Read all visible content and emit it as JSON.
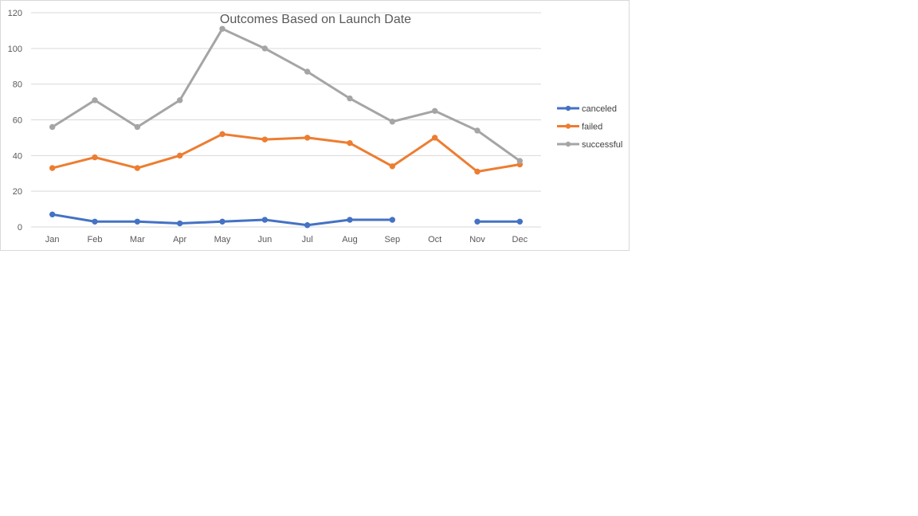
{
  "chart_data": {
    "type": "line",
    "title": "Outcomes Based on Launch Date",
    "xlabel": "",
    "ylabel": "",
    "categories": [
      "Jan",
      "Feb",
      "Mar",
      "Apr",
      "May",
      "Jun",
      "Jul",
      "Aug",
      "Sep",
      "Oct",
      "Nov",
      "Dec"
    ],
    "ylim": [
      0,
      120
    ],
    "yticks": [
      "0",
      "20",
      "40",
      "60",
      "80",
      "100",
      "120"
    ],
    "grid": true,
    "legend_position": "right",
    "series": [
      {
        "name": "canceled",
        "color": "#4472c4",
        "values": [
          7,
          3,
          3,
          2,
          3,
          4,
          1,
          4,
          4,
          null,
          3,
          3
        ]
      },
      {
        "name": "failed",
        "color": "#ed7d31",
        "values": [
          33,
          39,
          33,
          40,
          52,
          49,
          50,
          47,
          34,
          50,
          31,
          35
        ]
      },
      {
        "name": "successful",
        "color": "#a5a5a5",
        "values": [
          56,
          71,
          56,
          71,
          111,
          100,
          87,
          72,
          59,
          65,
          54,
          37
        ]
      }
    ]
  }
}
